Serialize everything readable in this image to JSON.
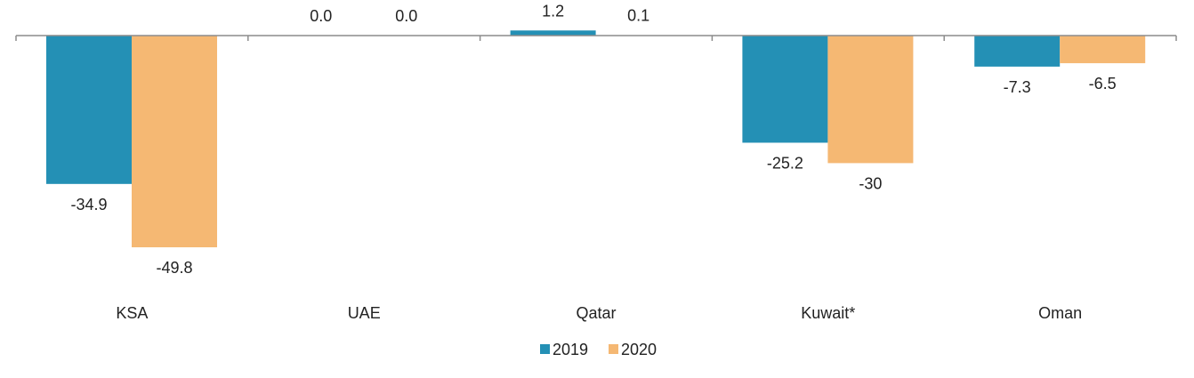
{
  "chart_data": {
    "type": "bar",
    "categories": [
      "KSA",
      "UAE",
      "Qatar",
      "Kuwait*",
      "Oman"
    ],
    "series": [
      {
        "name": "2019",
        "color": "#2490b5",
        "values": [
          -34.9,
          0.0,
          1.2,
          -25.2,
          -7.3
        ],
        "labels": [
          "-34.9",
          "0.0",
          "1.2",
          "-25.2",
          "-7.3"
        ]
      },
      {
        "name": "2020",
        "color": "#f5b873",
        "values": [
          -49.8,
          0.0,
          0.1,
          -30,
          -6.5
        ],
        "labels": [
          "-49.8",
          "0.0",
          "0.1",
          "-30",
          "-6.5"
        ]
      }
    ],
    "title": "",
    "xlabel": "",
    "ylabel": "",
    "legend_position": "bottom-center",
    "grid": false
  }
}
